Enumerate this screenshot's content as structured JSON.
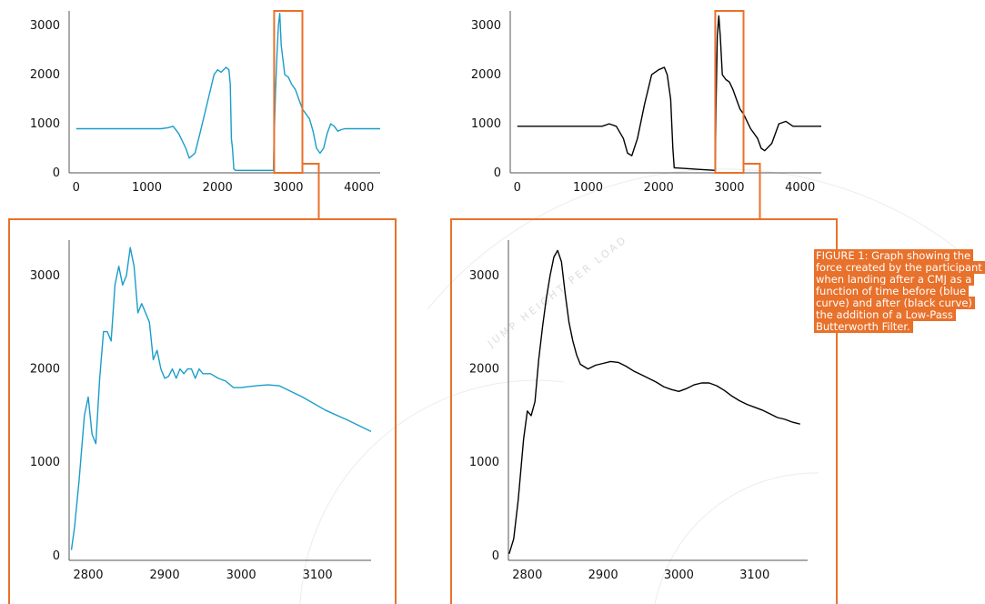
{
  "caption": "FIGURE 1: Graph showing the force created by the participant when landing after a CMJ as a function of time before (blue curve) and after (black curve) the addition of a Low-Pass Butterworth Filter.",
  "watermark": "JUMP HEIGHT PER LOAD",
  "colors": {
    "raw": "#1a9dc9",
    "filtered": "#000000",
    "accent": "#e8712b",
    "axis": "#555555"
  },
  "chart_data": [
    {
      "id": "raw-full",
      "type": "line",
      "title": "",
      "xlabel": "",
      "ylabel": "",
      "xlim": [
        -100,
        4300
      ],
      "ylim": [
        0,
        3300
      ],
      "xticks": [
        0,
        1000,
        2000,
        3000,
        4000
      ],
      "yticks": [
        0,
        1000,
        2000,
        3000
      ],
      "highlight_x": [
        2800,
        3200
      ],
      "series": [
        {
          "color": "#1a9dc9",
          "x": [
            0,
            400,
            800,
            1200,
            1300,
            1370,
            1450,
            1550,
            1600,
            1680,
            1750,
            1850,
            1950,
            2000,
            2050,
            2120,
            2160,
            2180,
            2195,
            2210,
            2230,
            2250,
            2700,
            2790,
            2800,
            2820,
            2840,
            2860,
            2880,
            2900,
            2950,
            3000,
            3050,
            3100,
            3200,
            3300,
            3350,
            3400,
            3450,
            3500,
            3550,
            3600,
            3650,
            3700,
            3750,
            3800,
            3900,
            4000,
            4100,
            4300
          ],
          "y": [
            900,
            900,
            900,
            900,
            920,
            950,
            800,
            500,
            300,
            400,
            800,
            1400,
            2000,
            2100,
            2050,
            2150,
            2100,
            1800,
            700,
            500,
            80,
            50,
            50,
            50,
            700,
            1700,
            2400,
            3000,
            3250,
            2600,
            2000,
            1950,
            1800,
            1700,
            1300,
            1100,
            850,
            500,
            400,
            500,
            800,
            1000,
            950,
            850,
            880,
            900,
            900,
            900,
            900,
            900
          ]
        }
      ]
    },
    {
      "id": "filtered-full",
      "type": "line",
      "title": "",
      "xlabel": "",
      "ylabel": "",
      "xlim": [
        -100,
        4300
      ],
      "ylim": [
        0,
        3300
      ],
      "xticks": [
        0,
        1000,
        2000,
        3000,
        4000
      ],
      "yticks": [
        0,
        1000,
        2000,
        3000
      ],
      "highlight_x": [
        2800,
        3200
      ],
      "series": [
        {
          "color": "#000000",
          "x": [
            0,
            400,
            800,
            1200,
            1300,
            1400,
            1500,
            1560,
            1620,
            1700,
            1800,
            1900,
            2000,
            2080,
            2120,
            2170,
            2200,
            2220,
            2240,
            2800,
            2810,
            2830,
            2850,
            2870,
            2900,
            2950,
            3000,
            3050,
            3100,
            3150,
            3200,
            3300,
            3400,
            3450,
            3500,
            3600,
            3700,
            3800,
            3900,
            4100,
            4300
          ],
          "y": [
            950,
            950,
            950,
            950,
            1000,
            950,
            700,
            400,
            350,
            700,
            1400,
            2000,
            2100,
            2150,
            2000,
            1500,
            500,
            100,
            100,
            50,
            1300,
            2800,
            3200,
            2800,
            2000,
            1900,
            1850,
            1700,
            1500,
            1300,
            1200,
            900,
            700,
            500,
            450,
            600,
            1000,
            1050,
            950,
            950,
            950
          ]
        }
      ]
    },
    {
      "id": "raw-zoom",
      "type": "line",
      "title": "",
      "xlabel": "",
      "ylabel": "",
      "xlim": [
        2775,
        3170
      ],
      "ylim": [
        -50,
        3380
      ],
      "xticks": [
        2800,
        2900,
        3000,
        3100
      ],
      "yticks": [
        0,
        1000,
        2000,
        3000
      ],
      "series": [
        {
          "color": "#1a9dc9",
          "x": [
            2778,
            2782,
            2788,
            2795,
            2800,
            2805,
            2810,
            2815,
            2820,
            2825,
            2830,
            2835,
            2840,
            2845,
            2850,
            2855,
            2860,
            2865,
            2870,
            2875,
            2880,
            2885,
            2890,
            2895,
            2900,
            2905,
            2910,
            2915,
            2920,
            2925,
            2930,
            2935,
            2940,
            2945,
            2950,
            2960,
            2970,
            2980,
            2990,
            3000,
            3010,
            3020,
            3035,
            3050,
            3080,
            3110,
            3140,
            3170
          ],
          "y": [
            60,
            300,
            800,
            1500,
            1700,
            1300,
            1200,
            1900,
            2400,
            2400,
            2300,
            2900,
            3100,
            2900,
            3000,
            3300,
            3100,
            2600,
            2700,
            2600,
            2500,
            2100,
            2200,
            2000,
            1900,
            1920,
            2000,
            1900,
            2000,
            1950,
            2000,
            2000,
            1900,
            2000,
            1950,
            1950,
            1900,
            1870,
            1800,
            1800,
            1810,
            1820,
            1830,
            1820,
            1700,
            1560,
            1450,
            1330
          ]
        }
      ]
    },
    {
      "id": "filtered-zoom",
      "type": "line",
      "title": "",
      "xlabel": "",
      "ylabel": "",
      "xlim": [
        2775,
        3170
      ],
      "ylim": [
        -50,
        3380
      ],
      "xticks": [
        2800,
        2900,
        3000,
        3100
      ],
      "yticks": [
        0,
        1000,
        2000,
        3000
      ],
      "series": [
        {
          "color": "#000000",
          "x": [
            2776,
            2782,
            2788,
            2795,
            2800,
            2805,
            2810,
            2815,
            2820,
            2825,
            2830,
            2835,
            2840,
            2845,
            2850,
            2855,
            2860,
            2865,
            2870,
            2880,
            2890,
            2900,
            2910,
            2920,
            2930,
            2940,
            2950,
            2960,
            2970,
            2980,
            2990,
            3000,
            3010,
            3020,
            3030,
            3040,
            3050,
            3060,
            3070,
            3080,
            3090,
            3100,
            3110,
            3120,
            3130,
            3140,
            3150,
            3160
          ],
          "y": [
            20,
            180,
            600,
            1250,
            1550,
            1500,
            1650,
            2100,
            2450,
            2750,
            3000,
            3200,
            3270,
            3150,
            2800,
            2500,
            2300,
            2150,
            2050,
            2000,
            2040,
            2060,
            2080,
            2070,
            2030,
            1980,
            1940,
            1900,
            1860,
            1810,
            1780,
            1760,
            1790,
            1830,
            1850,
            1850,
            1820,
            1770,
            1710,
            1660,
            1620,
            1590,
            1560,
            1520,
            1480,
            1460,
            1430,
            1410
          ]
        }
      ]
    }
  ]
}
